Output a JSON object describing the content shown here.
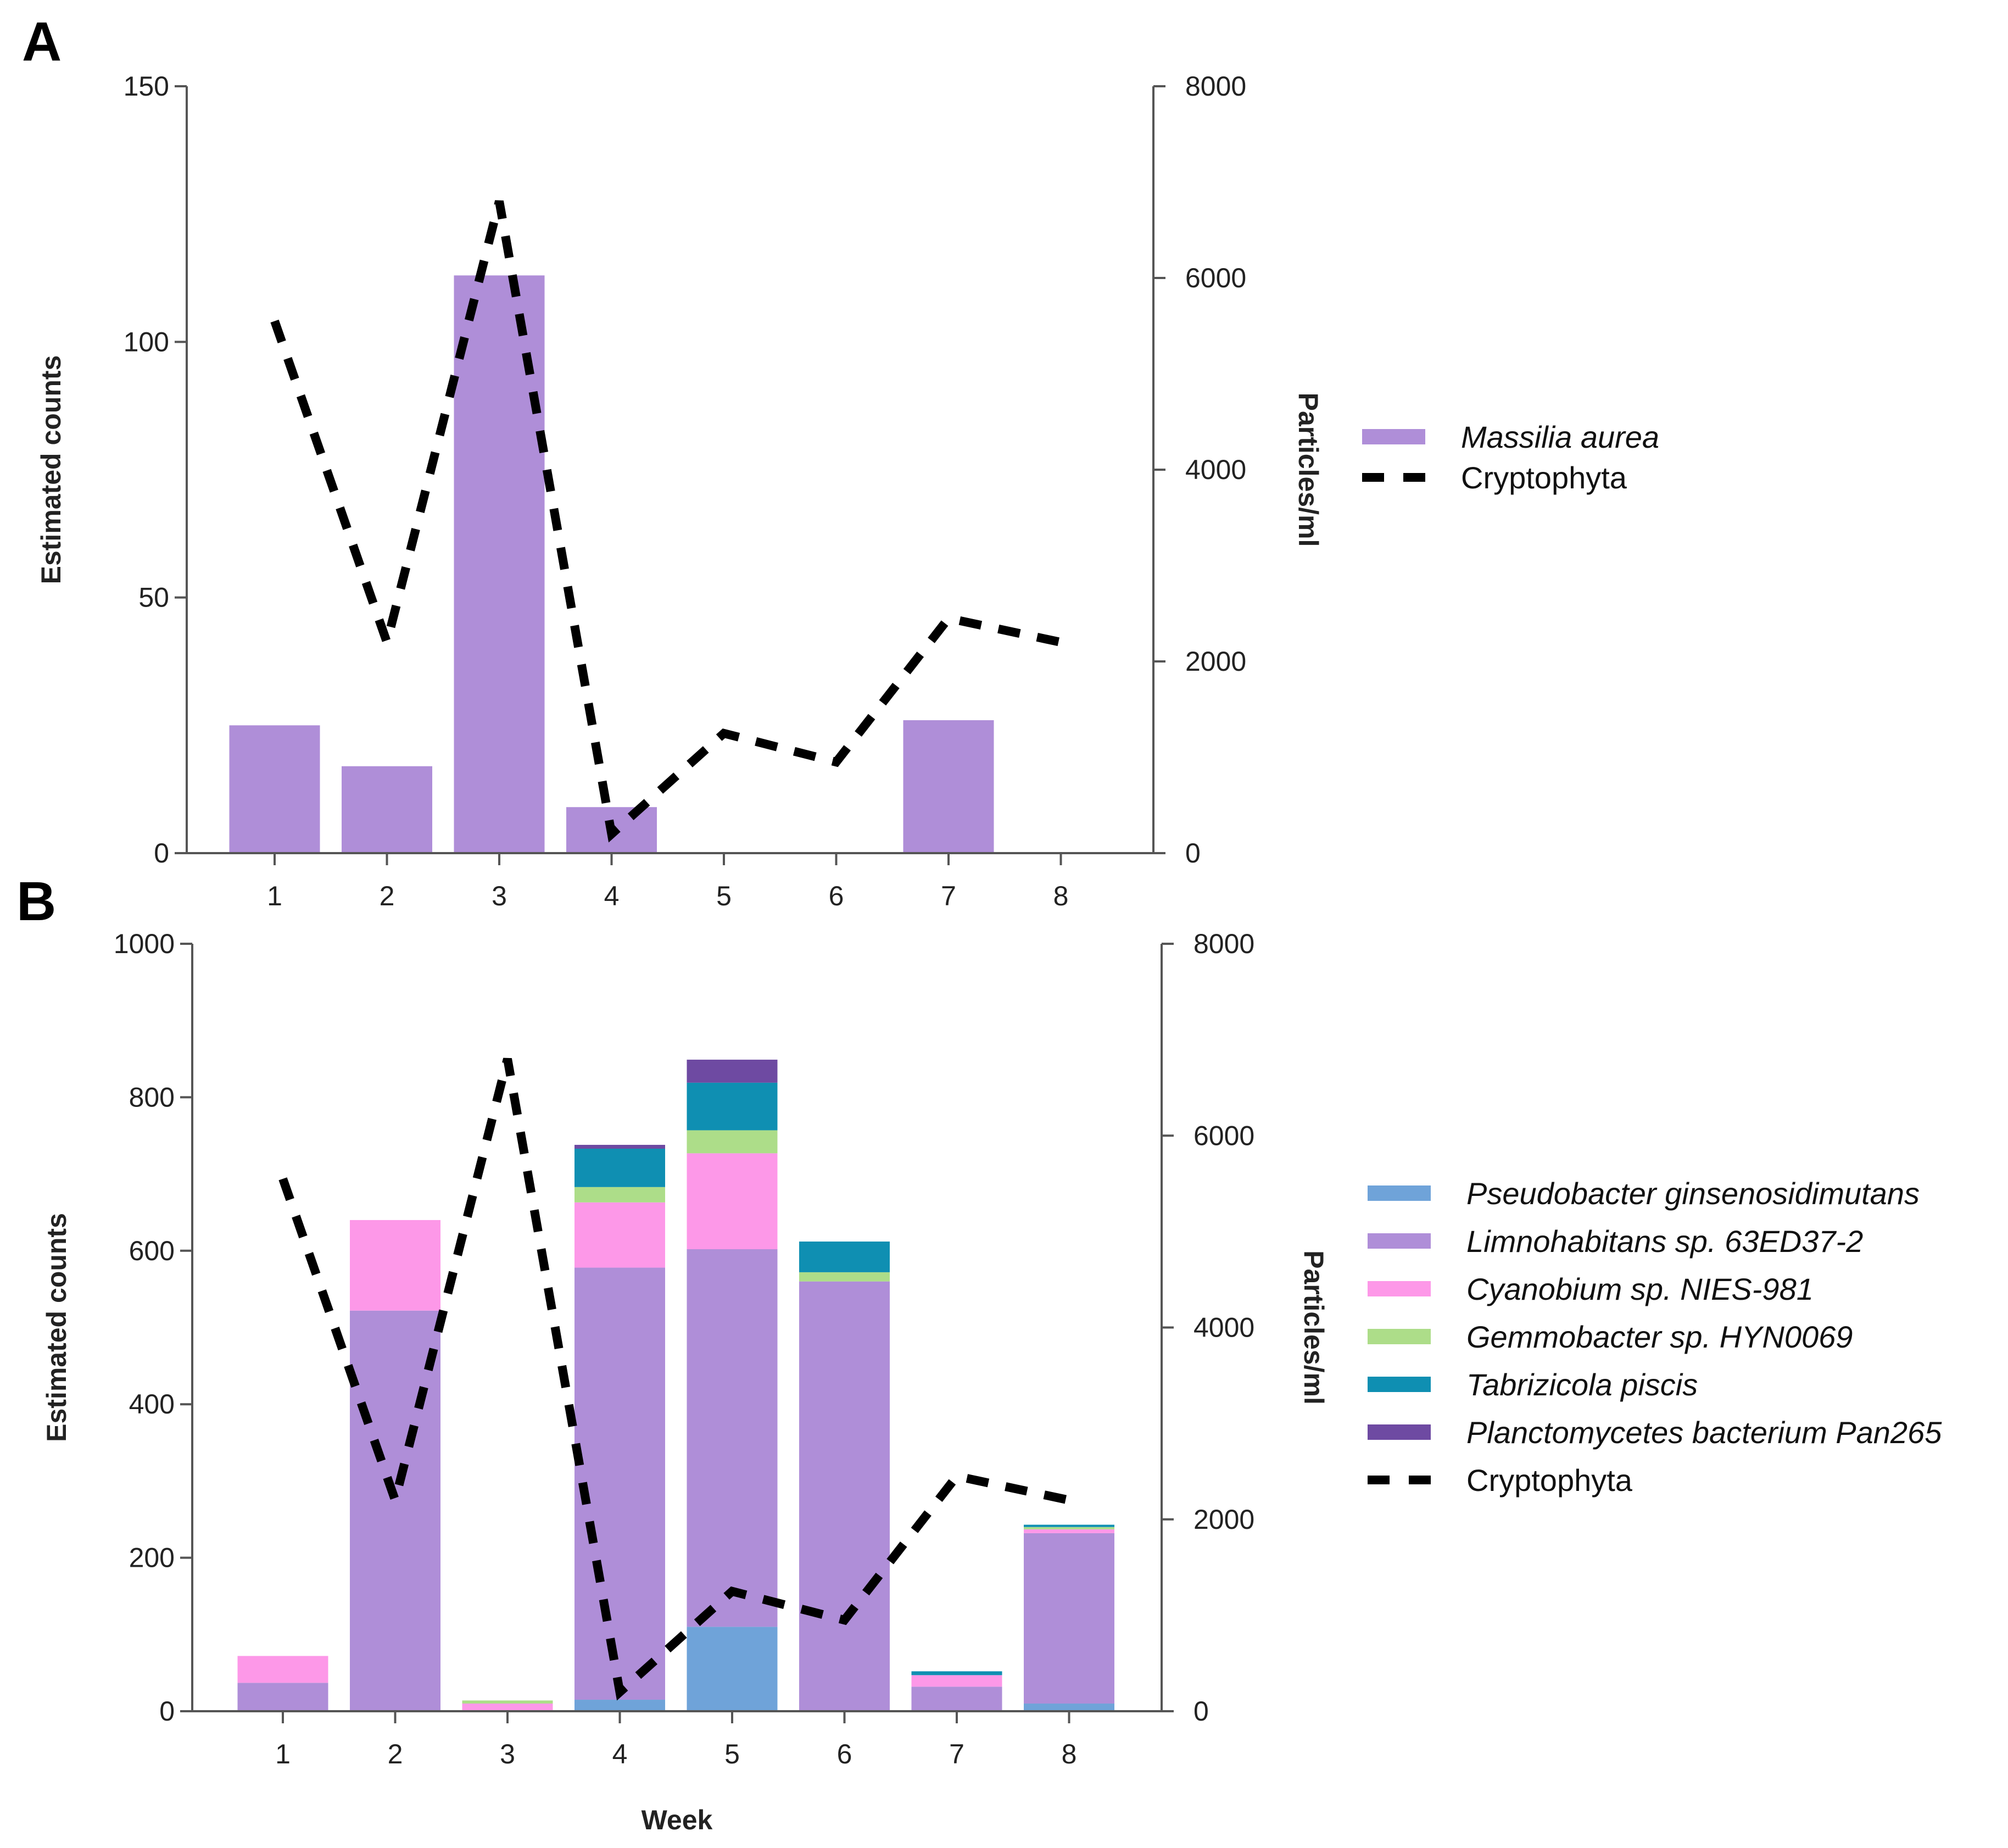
{
  "panels": {
    "a": {
      "letter": "A"
    },
    "b": {
      "letter": "B"
    }
  },
  "colors": {
    "massilia": "#af8ed8",
    "pseudobacter": "#6fa3d9",
    "limnohabitans": "#af8ed8",
    "cyanobium": "#fd98e8",
    "gemmobacter": "#addd89",
    "tabrizicola": "#0f8fb2",
    "planctomycetes": "#6e4aa2",
    "cryptophyta": "#000000"
  },
  "chart_data": [
    {
      "type": "bar",
      "panel": "A",
      "categories": [
        "1",
        "2",
        "3",
        "4",
        "5",
        "6",
        "7",
        "8"
      ],
      "series": [
        {
          "name": "Massilia aurea",
          "values": [
            25,
            17,
            113,
            9,
            0,
            0,
            26,
            0
          ],
          "italic": true
        }
      ],
      "line_series": [
        {
          "name": "Cryptophyta",
          "axis": "right",
          "values": [
            5550,
            2200,
            6800,
            200,
            1250,
            950,
            2450,
            2200
          ],
          "style": "dashed"
        }
      ],
      "xlabel": "",
      "ylabel": "Estimated counts",
      "y2label": "Particles/ml",
      "ylim": [
        0,
        150
      ],
      "y2lim": [
        0,
        8000
      ],
      "yticks": [
        "0",
        "50",
        "100",
        "150"
      ],
      "y2ticks": [
        "0",
        "2000",
        "4000",
        "6000",
        "8000"
      ],
      "legend_position": "right"
    },
    {
      "type": "bar",
      "stacked": true,
      "panel": "B",
      "categories": [
        "1",
        "2",
        "3",
        "4",
        "5",
        "6",
        "7",
        "8"
      ],
      "series": [
        {
          "name": "Pseudobacter ginsenosidimutans",
          "values": [
            0,
            0,
            0,
            15,
            110,
            0,
            0,
            10
          ],
          "italic": true
        },
        {
          "name": "Limnohabitans sp. 63ED37-2",
          "values": [
            37,
            522,
            0,
            563,
            492,
            560,
            32,
            222
          ],
          "italic": true
        },
        {
          "name": "Cyanobium sp. NIES-981",
          "values": [
            35,
            118,
            10,
            85,
            125,
            0,
            15,
            5
          ],
          "italic": true
        },
        {
          "name": "Gemmobacter sp. HYN0069",
          "values": [
            0,
            0,
            4,
            20,
            30,
            12,
            0,
            3
          ],
          "italic": true
        },
        {
          "name": "Tabrizicola piscis",
          "values": [
            0,
            0,
            0,
            50,
            62,
            40,
            5,
            3
          ],
          "italic": true
        },
        {
          "name": "Planctomycetes bacterium Pan265",
          "values": [
            0,
            0,
            0,
            5,
            30,
            0,
            0,
            0
          ],
          "italic": true
        }
      ],
      "line_series": [
        {
          "name": "Cryptophyta",
          "axis": "right",
          "values": [
            5550,
            2200,
            6800,
            200,
            1250,
            950,
            2450,
            2200
          ],
          "style": "dashed"
        }
      ],
      "xlabel": "Week",
      "ylabel": "Estimated counts",
      "y2label": "Particles/ml",
      "ylim": [
        0,
        1000
      ],
      "y2lim": [
        0,
        8000
      ],
      "yticks": [
        "0",
        "200",
        "400",
        "600",
        "800",
        "1000"
      ],
      "y2ticks": [
        "0",
        "2000",
        "4000",
        "6000",
        "8000"
      ],
      "legend_position": "right"
    }
  ]
}
